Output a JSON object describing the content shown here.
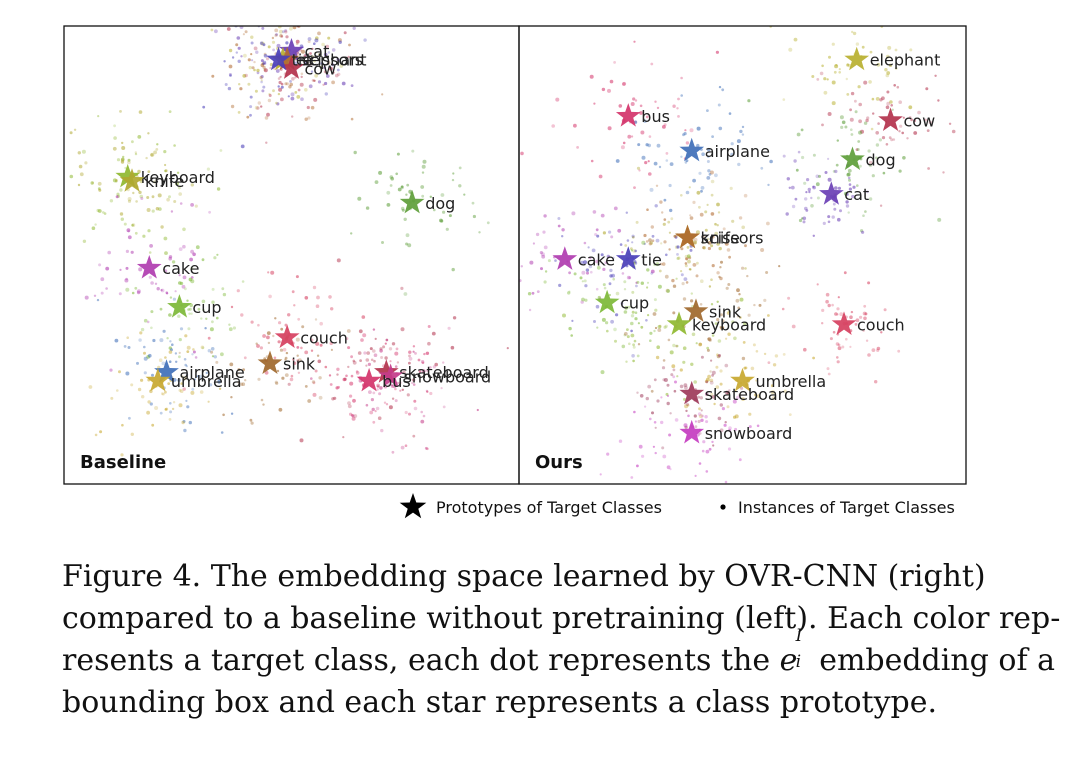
{
  "chart_data": [
    {
      "type": "scatter",
      "title": "",
      "panel_label": "Baseline",
      "xlabel": "",
      "ylabel": "",
      "grid": false,
      "note": "2D embedding projection; star = class prototype, dots = instances (approximate cluster centers)",
      "xlim": [
        0,
        100
      ],
      "ylim": [
        0,
        100
      ],
      "prototypes": [
        {
          "label": "cat",
          "x": 50,
          "y": 97,
          "color": "#6a3fb5"
        },
        {
          "label": "elephant",
          "x": 48,
          "y": 95,
          "color": "#b8b030"
        },
        {
          "label": "scissors",
          "x": 49,
          "y": 95,
          "color": "#b06a30"
        },
        {
          "label": "cow",
          "x": 50,
          "y": 93,
          "color": "#b3324c"
        },
        {
          "label": "tie",
          "x": 47,
          "y": 95,
          "color": "#4a3fb8"
        },
        {
          "label": "keyboard",
          "x": 12,
          "y": 68,
          "color": "#8fb830"
        },
        {
          "label": "knife",
          "x": 13,
          "y": 67,
          "color": "#b0a830"
        },
        {
          "label": "dog",
          "x": 78,
          "y": 62,
          "color": "#5e9e3a"
        },
        {
          "label": "cake",
          "x": 17,
          "y": 47,
          "color": "#b03cb0"
        },
        {
          "label": "cup",
          "x": 24,
          "y": 38,
          "color": "#7db837"
        },
        {
          "label": "couch",
          "x": 49,
          "y": 31,
          "color": "#d64060"
        },
        {
          "label": "sink",
          "x": 45,
          "y": 25,
          "color": "#a0682c"
        },
        {
          "label": "airplane",
          "x": 21,
          "y": 23,
          "color": "#3f6fb8"
        },
        {
          "label": "umbrella",
          "x": 19,
          "y": 21,
          "color": "#c8a830"
        },
        {
          "label": "skateboard",
          "x": 72,
          "y": 23,
          "color": "#b3324c"
        },
        {
          "label": "snowboard",
          "x": 73,
          "y": 22,
          "color": "#c43c8a"
        },
        {
          "label": "bus",
          "x": 68,
          "y": 21,
          "color": "#d4336a"
        }
      ]
    },
    {
      "type": "scatter",
      "title": "",
      "panel_label": "Ours",
      "xlabel": "",
      "ylabel": "",
      "grid": false,
      "xlim": [
        0,
        100
      ],
      "ylim": [
        0,
        100
      ],
      "prototypes": [
        {
          "label": "elephant",
          "x": 77,
          "y": 95,
          "color": "#b8b030"
        },
        {
          "label": "bus",
          "x": 23,
          "y": 82,
          "color": "#d4336a"
        },
        {
          "label": "cow",
          "x": 85,
          "y": 81,
          "color": "#b3324c"
        },
        {
          "label": "airplane",
          "x": 38,
          "y": 74,
          "color": "#3f6fb8"
        },
        {
          "label": "dog",
          "x": 76,
          "y": 72,
          "color": "#5e9e3a"
        },
        {
          "label": "cat",
          "x": 71,
          "y": 64,
          "color": "#6a3fb5"
        },
        {
          "label": "knife",
          "x": 37,
          "y": 54,
          "color": "#b0a830"
        },
        {
          "label": "scissors",
          "x": 37,
          "y": 54,
          "color": "#b06a30"
        },
        {
          "label": "cake",
          "x": 8,
          "y": 49,
          "color": "#b03cb0"
        },
        {
          "label": "tie",
          "x": 23,
          "y": 49,
          "color": "#4a3fb8"
        },
        {
          "label": "cup",
          "x": 18,
          "y": 39,
          "color": "#7db837"
        },
        {
          "label": "sink",
          "x": 39,
          "y": 37,
          "color": "#a0682c"
        },
        {
          "label": "keyboard",
          "x": 35,
          "y": 34,
          "color": "#8fb830"
        },
        {
          "label": "couch",
          "x": 74,
          "y": 34,
          "color": "#d64060"
        },
        {
          "label": "umbrella",
          "x": 50,
          "y": 21,
          "color": "#c8a830"
        },
        {
          "label": "skateboard",
          "x": 38,
          "y": 18,
          "color": "#9e3a5a"
        },
        {
          "label": "snowboard",
          "x": 38,
          "y": 9,
          "color": "#c43cc0"
        }
      ]
    }
  ],
  "legend": {
    "prototype_label": "Prototypes of Target Classes",
    "instance_label": "Instances of Target Classes"
  },
  "caption": {
    "line1": "Figure 4.  The embedding space learned by OVR-CNN (right)",
    "line2": "compared to a baseline without pretraining (left).  Each color rep-",
    "line3_a": "resents a target class, each dot represents the",
    "line3_e": "e",
    "line3_sup": "I",
    "line3_sub": "i",
    "line3_b": "embedding of a",
    "line4": "bounding box and each star represents a class prototype."
  }
}
